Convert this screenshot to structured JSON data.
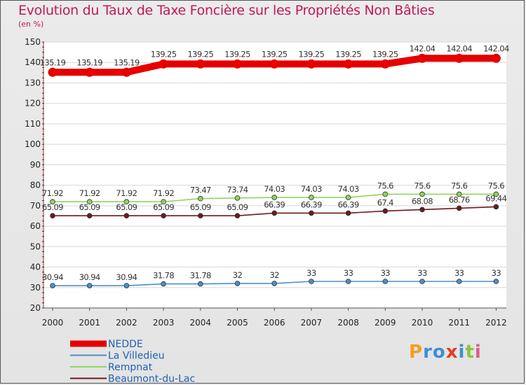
{
  "header": {
    "title": "Evolution du Taux de Taxe Foncière sur les Propriétés Non Bâties",
    "subtitle": "(en %)"
  },
  "logo": {
    "text": "Proxiti"
  },
  "chart_data": {
    "type": "line",
    "title": "Evolution du Taux de Taxe Foncière sur les Propriétés Non Bâties",
    "ylabel": "(en %)",
    "xlabel": "",
    "ylim": [
      20,
      150
    ],
    "yticks": [
      20,
      30,
      40,
      50,
      60,
      70,
      80,
      90,
      100,
      110,
      120,
      130,
      140,
      150
    ],
    "categories": [
      "2000",
      "2001",
      "2002",
      "2003",
      "2004",
      "2005",
      "2006",
      "2007",
      "2008",
      "2009",
      "2010",
      "2011",
      "2012"
    ],
    "legend_position": "bottom-left",
    "series": [
      {
        "name": "NEDDE",
        "color": "#e60000",
        "bold": true,
        "values": [
          135.19,
          135.19,
          135.19,
          139.25,
          139.25,
          139.25,
          139.25,
          139.25,
          139.25,
          139.25,
          142.04,
          142.04,
          142.04
        ],
        "labels": [
          "135.19",
          "135.19",
          "135.19",
          "139.25",
          "139.25",
          "139.25",
          "139.25",
          "139.25",
          "139.25",
          "139.25",
          "142.04",
          "142.04",
          "142.04"
        ]
      },
      {
        "name": "La Villedieu",
        "color": "#4a90c8",
        "values": [
          30.94,
          30.94,
          30.94,
          31.78,
          31.78,
          32,
          32,
          33,
          33,
          33,
          33,
          33,
          33
        ],
        "labels": [
          "30.94",
          "30.94",
          "30.94",
          "31.78",
          "31.78",
          "32",
          "32",
          "33",
          "33",
          "33",
          "33",
          "33",
          "33"
        ]
      },
      {
        "name": "Rempnat",
        "color": "#8ed65a",
        "values": [
          71.92,
          71.92,
          71.92,
          71.92,
          73.47,
          73.74,
          74.03,
          74.03,
          74.03,
          75.6,
          75.6,
          75.6,
          75.6
        ],
        "labels": [
          "71.92",
          "71.92",
          "71.92",
          "71.92",
          "73.47",
          "73.74",
          "74.03",
          "74.03",
          "74.03",
          "75.6",
          "75.6",
          "75.6",
          "75.6"
        ]
      },
      {
        "name": "Beaumont-du-Lac",
        "color": "#6b1a1a",
        "values": [
          65.09,
          65.09,
          65.09,
          65.09,
          65.09,
          65.09,
          66.39,
          66.39,
          66.39,
          67.4,
          68.08,
          68.76,
          69.44
        ],
        "labels": [
          "65.09",
          "65.09",
          "65.09",
          "65.09",
          "65.09",
          "65.09",
          "66.39",
          "66.39",
          "66.39",
          "67.4",
          "68.08",
          "68.76",
          "69.44"
        ]
      }
    ]
  }
}
